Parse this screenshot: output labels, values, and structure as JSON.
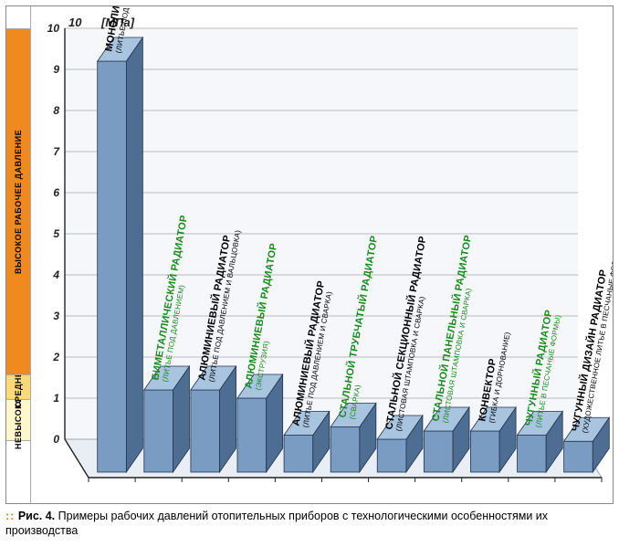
{
  "axis": {
    "unit_label": "[МПа]",
    "tick_values": [
      0,
      1,
      2,
      3,
      4,
      5,
      6,
      7,
      8,
      9,
      10
    ],
    "tick_fontsize": 12,
    "ylim": [
      0,
      10
    ],
    "axis_color": "#222222",
    "grid_color": "#808080"
  },
  "pressure_legend": {
    "bands": [
      {
        "key": "low",
        "label": "НЕВЫСОКОЕ",
        "range": [
          0,
          1
        ],
        "color": "#fff7cc"
      },
      {
        "key": "mid",
        "label": "СРЕДНЕЕ",
        "range": [
          1,
          1.6
        ],
        "color": "#ffd978"
      },
      {
        "key": "high",
        "label": "ВЫСОКОЕ РАБОЧЕЕ ДАВЛЕНИЕ",
        "range": [
          1.6,
          10
        ],
        "color": "#f08a1f"
      }
    ]
  },
  "chart": {
    "type": "bar3d",
    "bar_face_color": "#7a9bc2",
    "bar_top_color": "#a9c4df",
    "bar_side_color": "#4e6d92",
    "floor_color": "#e9eef4",
    "floor_edge": "#9aa7b4",
    "backwall_color": "#f5f7fa",
    "gridline_color": "#808080",
    "bar_outline": "#1f3350",
    "label_colors": {
      "black": "#000000",
      "green": "#1a8a1f"
    },
    "bars": [
      {
        "name": "МОНОЛИТНЫЙ БИМЕТАЛЛИЧЕСКИЙ РАДИАТОР",
        "sub": "(ЛИТЬЕ ПОД ДАВЛЕНИЕМ И КОНТАКТНО-СТЫКОВАЯ СВАРКА)",
        "value": 10.0,
        "label_color": "black"
      },
      {
        "name": "БИМЕТАЛЛИЧЕСКИЙ РАДИАТОР",
        "sub": "(ЛИТЬЕ ПОД ДАВЛЕНИЕМ)",
        "value": 2.0,
        "label_color": "green"
      },
      {
        "name": "АЛЮМИНИЕВЫЙ РАДИАТОР",
        "sub": "(ЛИТЬЕ ПОД ДАВЛЕНИЕМ И ВАЛЬЦОВКА)",
        "value": 2.0,
        "label_color": "black"
      },
      {
        "name": "АЛЮМИНИЕВЫЙ РАДИАТОР",
        "sub": "(ЭКСТРУЗИЯ)",
        "value": 1.8,
        "label_color": "green"
      },
      {
        "name": "АЛЮМИНИЕВЫЙ РАДИАТОР",
        "sub": "(ЛИТЬЕ ПОД ДАВЛЕНИЕМ И СВАРКА)",
        "value": 0.9,
        "label_color": "black"
      },
      {
        "name": "СТАЛЬНОЙ ТРУБЧАТЫЙ РАДИАТОР",
        "sub": "(СВАРКА)",
        "value": 1.1,
        "label_color": "green"
      },
      {
        "name": "СТАЛЬНОЙ СЕКЦИОННЫЙ РАДИАТОР",
        "sub": "(ЛИСТОВАЯ ШТАМПОВКА И СВАРКА)",
        "value": 0.8,
        "label_color": "black"
      },
      {
        "name": "СТАЛЬНОЙ ПАНЕЛЬНЫЙ РАДИАТОР",
        "sub": "(ЛИСТОВАЯ ШТАМПОВКА И СВАРКА)",
        "value": 1.0,
        "label_color": "green"
      },
      {
        "name": "КОНВЕКТОР",
        "sub": "(ГИБКА И ДОРНОВАНИЕ)",
        "value": 1.0,
        "label_color": "black"
      },
      {
        "name": "ЧУГУННЫЙ РАДИАТОР",
        "sub": "(ЛИТЬЕ В ПЕСЧАНЫЕ ФОРМЫ)",
        "value": 0.9,
        "label_color": "green"
      },
      {
        "name": "ЧУГУННЫЙ ДИЗАЙН РАДИАТОР",
        "sub": "(ХУДОЖЕСТВЕННОЕ ЛИТЬЕ В ПЕСЧАНЫЕ ФОРМЫ)",
        "value": 0.75,
        "label_color": "black"
      }
    ]
  },
  "caption": {
    "prefix_dots": "::",
    "label": "Рис. 4.",
    "text": "Примеры рабочих давлений отопительных приборов с технологическими особенностями их производства"
  }
}
